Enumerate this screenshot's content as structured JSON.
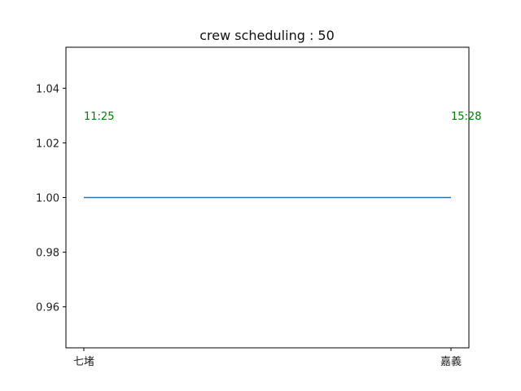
{
  "chart_data": {
    "type": "line",
    "title": "crew scheduling : 50",
    "categories": [
      "七堵",
      "嘉義"
    ],
    "series": [
      {
        "values": [
          1.0,
          1.0
        ],
        "color": "#1f77b4"
      }
    ],
    "annotations": [
      {
        "text": "11:25",
        "x": "七堵",
        "y": 1.03,
        "color": "#008000"
      },
      {
        "text": "15:28",
        "x": "嘉義",
        "y": 1.03,
        "color": "#008000"
      }
    ],
    "ylim": [
      0.945,
      1.055
    ],
    "yticks": [
      0.96,
      0.98,
      1.0,
      1.02,
      1.04
    ],
    "ytick_labels": [
      "0.96",
      "0.98",
      "1.00",
      "1.02",
      "1.04"
    ],
    "grid": false,
    "xlabel": "",
    "ylabel": ""
  }
}
